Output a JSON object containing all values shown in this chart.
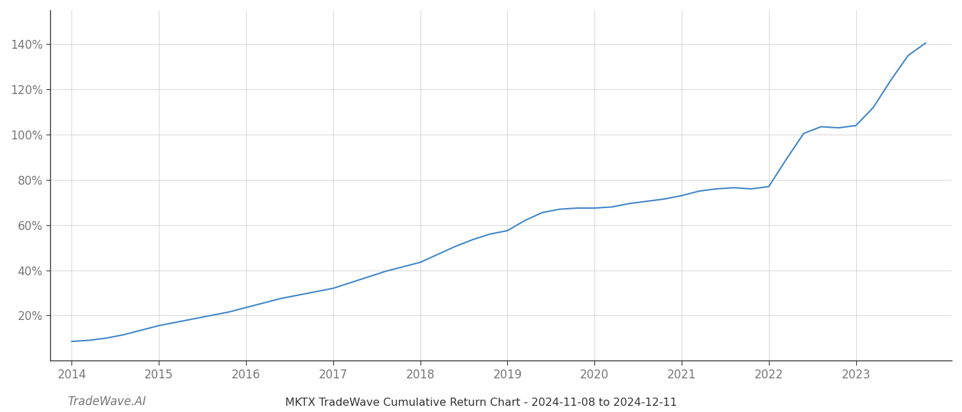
{
  "x_years": [
    2014.0,
    2014.2,
    2014.4,
    2014.6,
    2014.8,
    2015.0,
    2015.2,
    2015.4,
    2015.6,
    2015.8,
    2016.0,
    2016.2,
    2016.4,
    2016.6,
    2016.8,
    2017.0,
    2017.2,
    2017.4,
    2017.6,
    2017.8,
    2018.0,
    2018.2,
    2018.4,
    2018.6,
    2018.8,
    2019.0,
    2019.2,
    2019.4,
    2019.6,
    2019.8,
    2020.0,
    2020.2,
    2020.4,
    2020.6,
    2020.8,
    2021.0,
    2021.2,
    2021.4,
    2021.6,
    2021.8,
    2022.0,
    2022.2,
    2022.4,
    2022.6,
    2022.8,
    2023.0,
    2023.2,
    2023.4,
    2023.6,
    2023.8
  ],
  "y_values": [
    8.5,
    9.0,
    10.0,
    11.5,
    13.5,
    15.5,
    17.0,
    18.5,
    20.0,
    21.5,
    23.5,
    25.5,
    27.5,
    29.0,
    30.5,
    32.0,
    34.5,
    37.0,
    39.5,
    41.5,
    43.5,
    47.0,
    50.5,
    53.5,
    56.0,
    57.5,
    62.0,
    65.5,
    67.0,
    67.5,
    67.5,
    68.0,
    69.5,
    70.5,
    71.5,
    73.0,
    75.0,
    76.0,
    76.5,
    76.0,
    77.0,
    89.0,
    100.5,
    103.5,
    103.0,
    104.0,
    112.0,
    124.0,
    135.0,
    140.5
  ],
  "line_color": "#3d85c8",
  "line_width": 1.5,
  "title": "MKTX TradeWave Cumulative Return Chart - 2024-11-08 to 2024-12-11",
  "watermark": "TradeWave.AI",
  "xlim": [
    2013.75,
    2024.1
  ],
  "ylim": [
    0,
    155
  ],
  "yticks": [
    20,
    40,
    60,
    80,
    100,
    120,
    140
  ],
  "xticks": [
    2014,
    2015,
    2016,
    2017,
    2018,
    2019,
    2020,
    2021,
    2022,
    2023
  ],
  "background_color": "#ffffff",
  "grid_color": "#cccccc",
  "grid_alpha": 0.8,
  "tick_label_color": "#777777",
  "title_color": "#333333",
  "title_fontsize": 11.5,
  "watermark_fontsize": 12,
  "tick_fontsize": 12,
  "left_spine_color": "#333333"
}
